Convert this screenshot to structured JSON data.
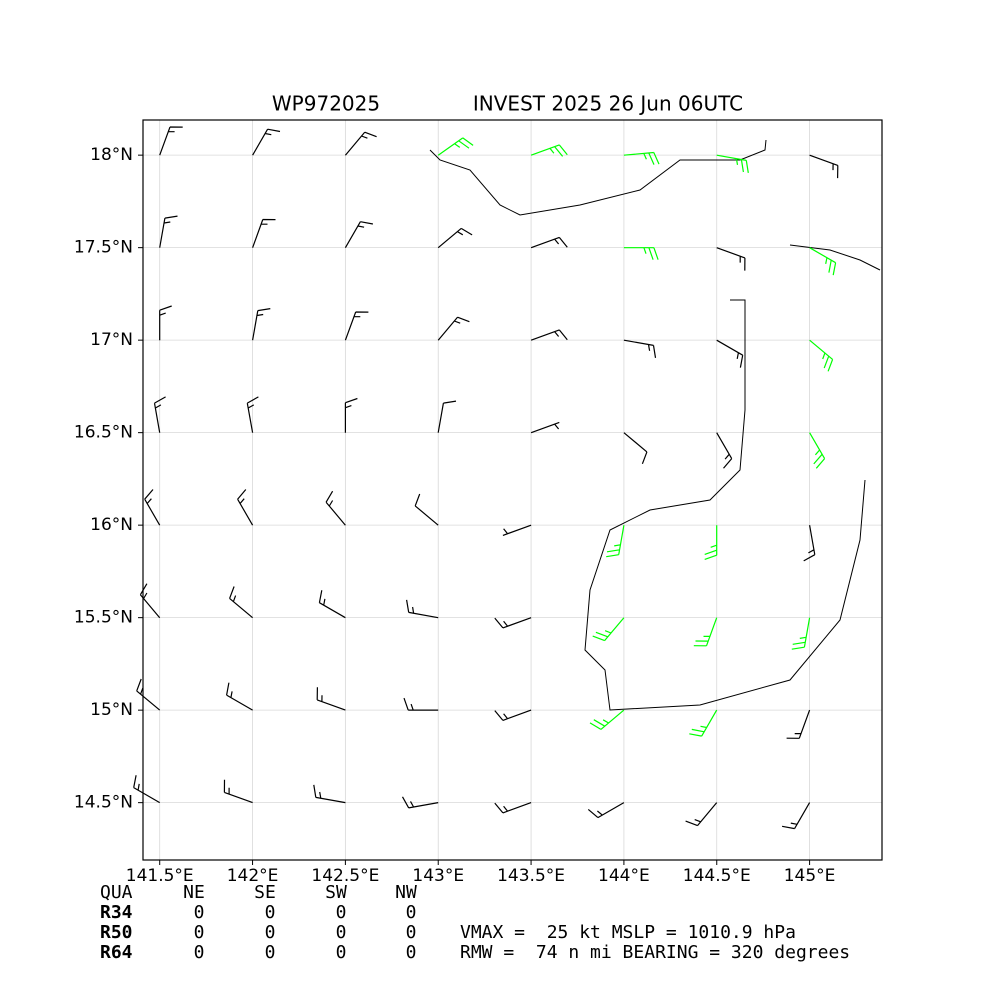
{
  "chart_data": {
    "type": "barbs",
    "title_left": "WP972025",
    "title_right": "INVEST 2025 26 Jun 06UTC",
    "xlim": [
      141.41,
      145.39
    ],
    "ylim": [
      14.19,
      18.19
    ],
    "xticks": [
      {
        "value": 141.5,
        "label": "141.5°E"
      },
      {
        "value": 142,
        "label": "142°E"
      },
      {
        "value": 142.5,
        "label": "142.5°E"
      },
      {
        "value": 143,
        "label": "143°E"
      },
      {
        "value": 143.5,
        "label": "143.5°E"
      },
      {
        "value": 144,
        "label": "144°E"
      },
      {
        "value": 144.5,
        "label": "144.5°E"
      },
      {
        "value": 145,
        "label": "145°E"
      }
    ],
    "yticks": [
      {
        "value": 14.5,
        "label": "14.5°N"
      },
      {
        "value": 15,
        "label": "15°N"
      },
      {
        "value": 15.5,
        "label": "15.5°N"
      },
      {
        "value": 16,
        "label": "16°N"
      },
      {
        "value": 16.5,
        "label": "16.5°N"
      },
      {
        "value": 17,
        "label": "17°N"
      },
      {
        "value": 17.5,
        "label": "17.5°N"
      },
      {
        "value": 18,
        "label": "18°N"
      }
    ],
    "grid": true,
    "series": [
      {
        "color": "#000000",
        "points": [
          [
            141.5,
            18,
            15,
            20
          ],
          [
            142,
            18,
            15,
            30
          ],
          [
            142.5,
            18,
            15,
            40
          ],
          [
            145,
            18,
            15,
            110
          ],
          [
            141.5,
            17.5,
            15,
            10
          ],
          [
            142,
            17.5,
            15,
            20
          ],
          [
            142.5,
            17.5,
            15,
            30
          ],
          [
            143,
            17.5,
            15,
            50
          ],
          [
            143.5,
            17.5,
            15,
            70
          ],
          [
            144.5,
            17.5,
            15,
            110
          ],
          [
            141.5,
            17,
            15,
            360
          ],
          [
            142,
            17,
            15,
            10
          ],
          [
            142.5,
            17,
            15,
            20
          ],
          [
            143,
            17,
            15,
            40
          ],
          [
            143.5,
            17,
            15,
            70
          ],
          [
            144,
            17,
            15,
            100
          ],
          [
            144.5,
            17,
            15,
            120
          ],
          [
            141.5,
            16.5,
            15,
            350
          ],
          [
            142,
            16.5,
            15,
            350
          ],
          [
            142.5,
            16.5,
            15,
            360
          ],
          [
            143,
            16.5,
            10,
            10
          ],
          [
            143.5,
            16.5,
            5,
            70
          ],
          [
            144,
            16.5,
            10,
            130
          ],
          [
            144.5,
            16.5,
            15,
            150
          ],
          [
            141.5,
            16,
            15,
            330
          ],
          [
            142,
            16,
            15,
            330
          ],
          [
            142.5,
            16,
            15,
            320
          ],
          [
            143,
            16,
            10,
            310
          ],
          [
            143.5,
            16,
            5,
            250
          ],
          [
            145,
            16,
            15,
            170
          ],
          [
            141.5,
            15.5,
            15,
            320
          ],
          [
            142,
            15.5,
            15,
            310
          ],
          [
            142.5,
            15.5,
            15,
            300
          ],
          [
            143,
            15.5,
            15,
            280
          ],
          [
            143.5,
            15.5,
            15,
            250
          ],
          [
            141.5,
            15,
            15,
            310
          ],
          [
            142,
            15,
            15,
            300
          ],
          [
            142.5,
            15,
            15,
            290
          ],
          [
            143,
            15,
            15,
            270
          ],
          [
            143.5,
            15,
            15,
            250
          ],
          [
            145,
            15,
            15,
            200
          ],
          [
            141.5,
            14.5,
            15,
            300
          ],
          [
            142,
            14.5,
            15,
            290
          ],
          [
            142.5,
            14.5,
            15,
            280
          ],
          [
            143,
            14.5,
            15,
            260
          ],
          [
            143.5,
            14.5,
            15,
            250
          ],
          [
            144,
            14.5,
            15,
            240
          ],
          [
            144.5,
            14.5,
            15,
            220
          ],
          [
            145,
            14.5,
            15,
            210
          ]
        ]
      },
      {
        "color": "#00ff00",
        "points": [
          [
            143,
            18,
            25,
            55
          ],
          [
            143.5,
            18,
            25,
            70
          ],
          [
            144,
            18,
            25,
            85
          ],
          [
            144.5,
            18,
            25,
            100
          ],
          [
            144,
            17.5,
            25,
            90
          ],
          [
            145,
            17.5,
            25,
            120
          ],
          [
            145,
            17,
            25,
            130
          ],
          [
            145,
            16.5,
            25,
            150
          ],
          [
            144,
            16,
            25,
            190
          ],
          [
            144.5,
            16,
            25,
            180
          ],
          [
            144,
            15.5,
            25,
            220
          ],
          [
            144.5,
            15.5,
            25,
            200
          ],
          [
            145,
            15.5,
            25,
            190
          ],
          [
            144,
            15,
            25,
            230
          ],
          [
            144.5,
            15,
            25,
            210
          ]
        ]
      }
    ],
    "table": {
      "header": [
        "QUA",
        "NE",
        "SE",
        "SW",
        "NW"
      ],
      "rows": [
        [
          "R34",
          0,
          0,
          0,
          0
        ],
        [
          "R50",
          0,
          0,
          0,
          0
        ],
        [
          "R64",
          0,
          0,
          0,
          0
        ]
      ]
    },
    "info": [
      "VMAX =  25 kt MSLP = 1010.9 hPa",
      "RMW =  74 n mi BEARING = 320 degrees"
    ]
  }
}
